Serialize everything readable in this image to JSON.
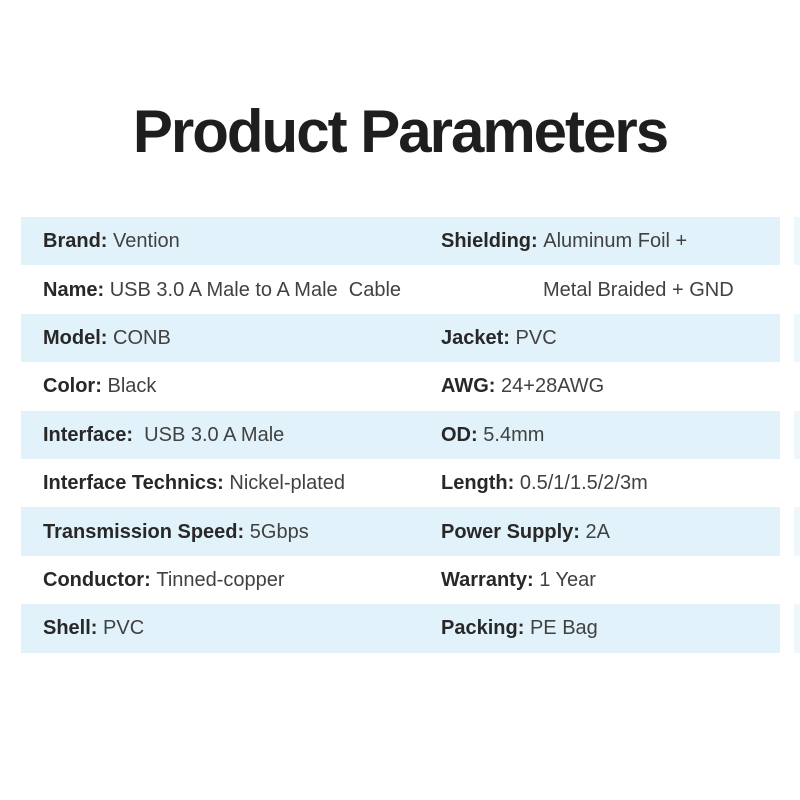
{
  "title": "Product Parameters",
  "colors": {
    "background": "#ffffff",
    "row_highlight": "#e2f2fa",
    "edge_sliver": "#eef7fc",
    "title_text": "#1e1e1e",
    "label_text": "#282828",
    "value_text": "#414141"
  },
  "table": {
    "rows": [
      {
        "highlight": true,
        "left": {
          "label": "Brand:",
          "value": "Vention"
        },
        "right": {
          "label": "Shielding:",
          "value": "Aluminum Foil +"
        }
      },
      {
        "highlight": false,
        "left": {
          "label": "Name:",
          "value": "USB 3.0 A Male to A Male  Cable"
        },
        "right": {
          "label": "",
          "value": "Metal Braided + GND"
        }
      },
      {
        "highlight": true,
        "left": {
          "label": "Model:",
          "value": "CONB"
        },
        "right": {
          "label": "Jacket:",
          "value": "PVC"
        }
      },
      {
        "highlight": false,
        "left": {
          "label": "Color:",
          "value": "Black"
        },
        "right": {
          "label": "AWG:",
          "value": "24+28AWG"
        }
      },
      {
        "highlight": true,
        "left": {
          "label": "Interface:",
          "value": " USB 3.0 A Male"
        },
        "right": {
          "label": "OD:",
          "value": "5.4mm"
        }
      },
      {
        "highlight": false,
        "left": {
          "label": "Interface Technics:",
          "value": "Nickel-plated"
        },
        "right": {
          "label": "Length:",
          "value": "0.5/1/1.5/2/3m"
        }
      },
      {
        "highlight": true,
        "left": {
          "label": "Transmission Speed:",
          "value": "5Gbps"
        },
        "right": {
          "label": "Power Supply:",
          "value": "2A"
        }
      },
      {
        "highlight": false,
        "left": {
          "label": "Conductor:",
          "value": "Tinned-copper"
        },
        "right": {
          "label": "Warranty:",
          "value": "1 Year"
        }
      },
      {
        "highlight": true,
        "left": {
          "label": "Shell:",
          "value": "PVC"
        },
        "right": {
          "label": "Packing:",
          "value": "PE Bag"
        }
      }
    ]
  }
}
